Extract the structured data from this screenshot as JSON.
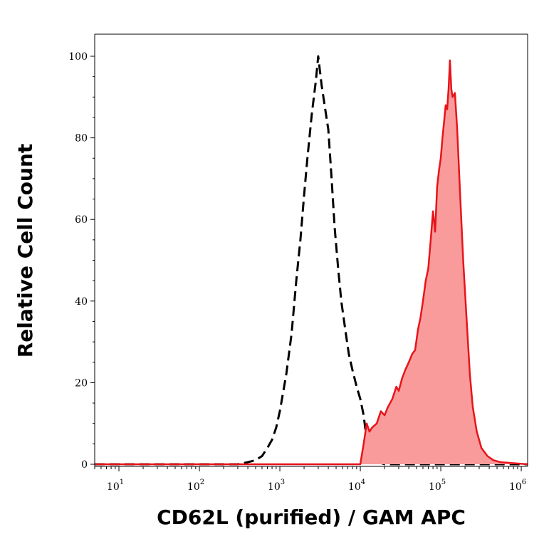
{
  "chart_data": {
    "type": "area",
    "xlabel": "CD62L (purified) / GAM APC",
    "ylabel": "Relative Cell Count",
    "xscale": "log",
    "xlim": [
      5,
      1200000
    ],
    "ylim": [
      0,
      100
    ],
    "grid": false,
    "legend": "none",
    "x_ticks": [
      {
        "base": "10",
        "exp": "1",
        "value": 10
      },
      {
        "base": "10",
        "exp": "2",
        "value": 100
      },
      {
        "base": "10",
        "exp": "3",
        "value": 1000
      },
      {
        "base": "10",
        "exp": "4",
        "value": 10000
      },
      {
        "base": "10",
        "exp": "5",
        "value": 100000
      },
      {
        "base": "10",
        "exp": "6",
        "value": 1000000
      }
    ],
    "y_ticks": [
      {
        "label": "0",
        "value": 0
      },
      {
        "label": "20",
        "value": 20
      },
      {
        "label": "40",
        "value": 40
      },
      {
        "label": "60",
        "value": 60
      },
      {
        "label": "80",
        "value": 80
      },
      {
        "label": "100",
        "value": 100
      }
    ],
    "series": [
      {
        "style": "dashed-outline",
        "color": "#000000",
        "x": [
          5,
          300,
          400,
          500,
          600,
          700,
          800,
          900,
          1000,
          1200,
          1400,
          1600,
          1800,
          2000,
          2200,
          2500,
          2800,
          3000,
          3300,
          3600,
          4000,
          4400,
          4800,
          5300,
          5800,
          6500,
          7200,
          8000,
          9000,
          10000,
          11000,
          12000,
          14000,
          20000,
          1200000
        ],
        "y": [
          0,
          0,
          0.5,
          1,
          2,
          4,
          6,
          9,
          13,
          22,
          32,
          45,
          55,
          66,
          75,
          86,
          94,
          100,
          93,
          88,
          82,
          70,
          58,
          48,
          40,
          33,
          27,
          23,
          19,
          16,
          12,
          6,
          1,
          0,
          0
        ]
      },
      {
        "style": "filled",
        "color": "#e8141a",
        "fill": "#f99b9b",
        "x": [
          5,
          10000,
          11000,
          12000,
          13000,
          14000,
          16000,
          18000,
          20000,
          22000,
          25000,
          28000,
          30000,
          33000,
          36000,
          40000,
          44000,
          48000,
          52000,
          56000,
          60000,
          65000,
          70000,
          75000,
          80000,
          85000,
          90000,
          95000,
          100000,
          105000,
          110000,
          115000,
          120000,
          125000,
          130000,
          135000,
          140000,
          150000,
          160000,
          175000,
          190000,
          210000,
          230000,
          250000,
          280000,
          320000,
          380000,
          450000,
          550000,
          1200000
        ],
        "y": [
          0,
          0,
          5,
          10,
          8,
          9,
          10,
          13,
          12,
          14,
          16,
          19,
          18,
          21,
          23,
          25,
          27,
          28,
          33,
          36,
          40,
          45,
          48,
          55,
          62,
          57,
          68,
          72,
          75,
          80,
          84,
          88,
          87,
          92,
          99,
          92,
          90,
          91,
          82,
          65,
          50,
          35,
          22,
          14,
          8,
          4,
          2,
          1,
          0.5,
          0
        ]
      }
    ]
  }
}
